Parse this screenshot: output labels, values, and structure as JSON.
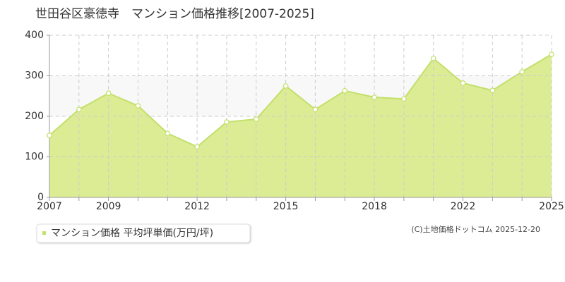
{
  "chart_data": {
    "type": "area",
    "title": "世田谷区豪徳寺　マンション価格推移[2007-2025]",
    "categories": [
      "2007",
      null,
      "2009",
      null,
      null,
      "2012",
      null,
      null,
      "2015",
      null,
      null,
      "2018",
      null,
      null,
      "2022",
      null,
      null,
      "2025"
    ],
    "series": [
      {
        "name": "マンション価格 平均坪単価(万円/坪)",
        "color": "#c2e06a",
        "values": [
          153,
          217,
          257,
          226,
          158,
          125,
          186,
          193,
          275,
          217,
          263,
          247,
          243,
          343,
          282,
          264,
          310,
          353
        ]
      }
    ],
    "ylim": [
      0,
      400
    ],
    "yticks": [
      0,
      100,
      200,
      300,
      400
    ],
    "grid": true,
    "copyright": "(C)土地価格ドットコム 2025-12-20"
  }
}
